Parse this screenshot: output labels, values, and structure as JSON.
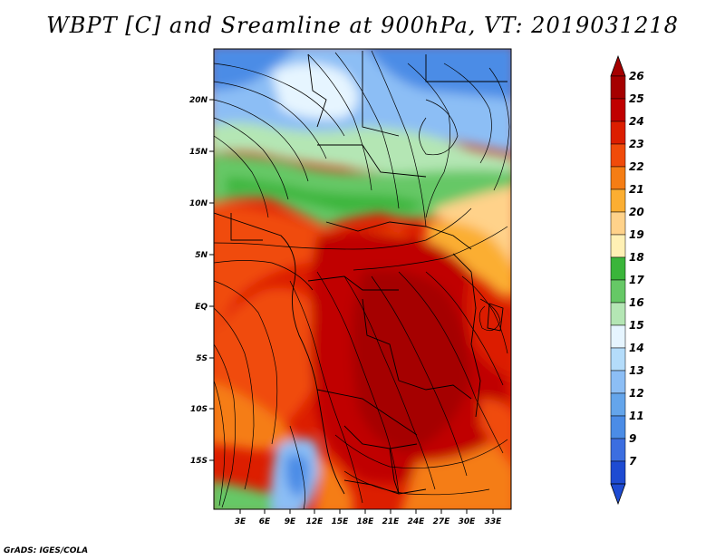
{
  "title": "WBPT [C] and Sreamline at 900hPa, VT: 2019031218",
  "credit": "GrADS: IGES/COLA",
  "map": {
    "lat_ticks": [
      "20N",
      "15N",
      "10N",
      "5N",
      "EQ",
      "5S",
      "10S",
      "15S"
    ],
    "lon_ticks": [
      "3E",
      "6E",
      "9E",
      "12E",
      "15E",
      "18E",
      "21E",
      "24E",
      "27E",
      "30E",
      "33E"
    ]
  },
  "colorbar": {
    "levels": [
      {
        "label": "26",
        "color": "#a50000"
      },
      {
        "label": "25",
        "color": "#c00000"
      },
      {
        "label": "24",
        "color": "#dc1e00"
      },
      {
        "label": "23",
        "color": "#f04b0a"
      },
      {
        "label": "22",
        "color": "#f57d14"
      },
      {
        "label": "21",
        "color": "#fbae32"
      },
      {
        "label": "20",
        "color": "#ffd28a"
      },
      {
        "label": "19",
        "color": "#fff0b4"
      },
      {
        "label": "18",
        "color": "#3ab53a"
      },
      {
        "label": "17",
        "color": "#66c866"
      },
      {
        "label": "16",
        "color": "#b4e6b4"
      },
      {
        "label": "15",
        "color": "#e6f5ff"
      },
      {
        "label": "14",
        "color": "#b4dcfa"
      },
      {
        "label": "13",
        "color": "#8cbef5"
      },
      {
        "label": "12",
        "color": "#64a5eb"
      },
      {
        "label": "11",
        "color": "#4b8ce6"
      },
      {
        "label": "9",
        "color": "#3c6ee0"
      },
      {
        "label": "7",
        "color": "#1e4bd2"
      }
    ]
  }
}
